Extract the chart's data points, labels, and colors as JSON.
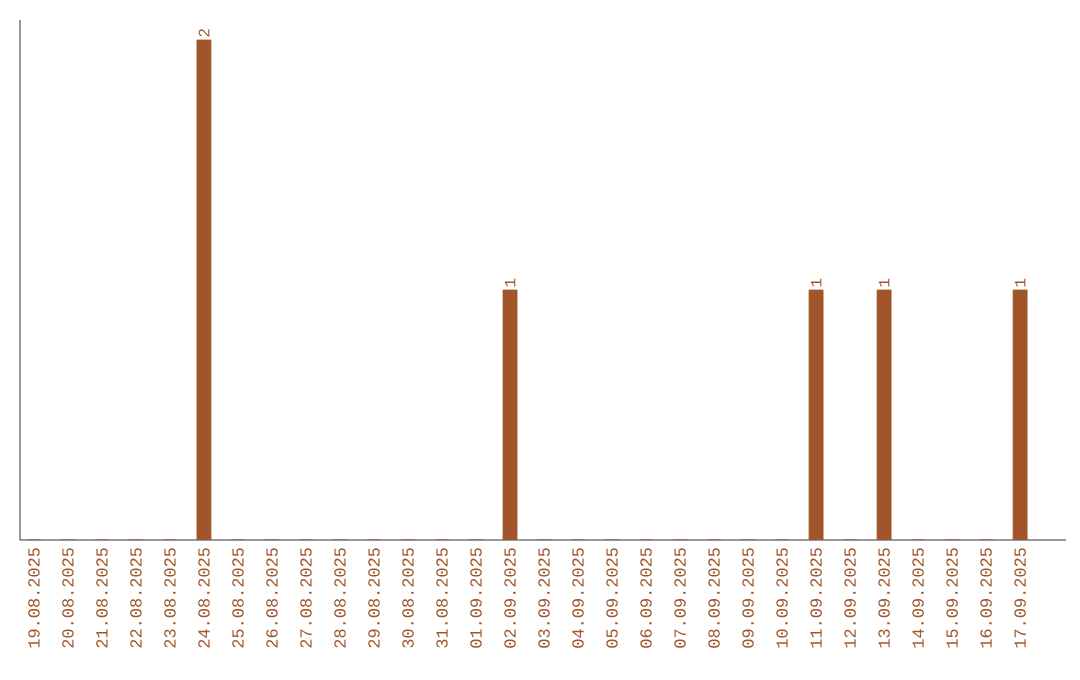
{
  "chart_data": {
    "type": "bar",
    "categories": [
      "19.08.2025",
      "20.08.2025",
      "21.08.2025",
      "22.08.2025",
      "23.08.2025",
      "24.08.2025",
      "25.08.2025",
      "26.08.2025",
      "27.08.2025",
      "28.08.2025",
      "29.08.2025",
      "30.08.2025",
      "31.08.2025",
      "01.09.2025",
      "02.09.2025",
      "03.09.2025",
      "04.09.2025",
      "05.09.2025",
      "06.09.2025",
      "07.09.2025",
      "08.09.2025",
      "09.09.2025",
      "10.09.2025",
      "11.09.2025",
      "12.09.2025",
      "13.09.2025",
      "14.09.2025",
      "15.09.2025",
      "16.09.2025",
      "17.09.2025"
    ],
    "values": [
      0,
      0,
      0,
      0,
      0,
      2,
      0,
      0,
      0,
      0,
      0,
      0,
      0,
      0,
      1,
      0,
      0,
      0,
      0,
      0,
      0,
      0,
      0,
      1,
      0,
      1,
      0,
      0,
      0,
      1
    ],
    "value_labels": [
      null,
      null,
      null,
      null,
      null,
      "2",
      null,
      null,
      null,
      null,
      null,
      null,
      null,
      null,
      "1",
      null,
      null,
      null,
      null,
      null,
      null,
      null,
      null,
      "1",
      null,
      "1",
      null,
      null,
      null,
      "1"
    ],
    "color": "#a0562a"
  }
}
